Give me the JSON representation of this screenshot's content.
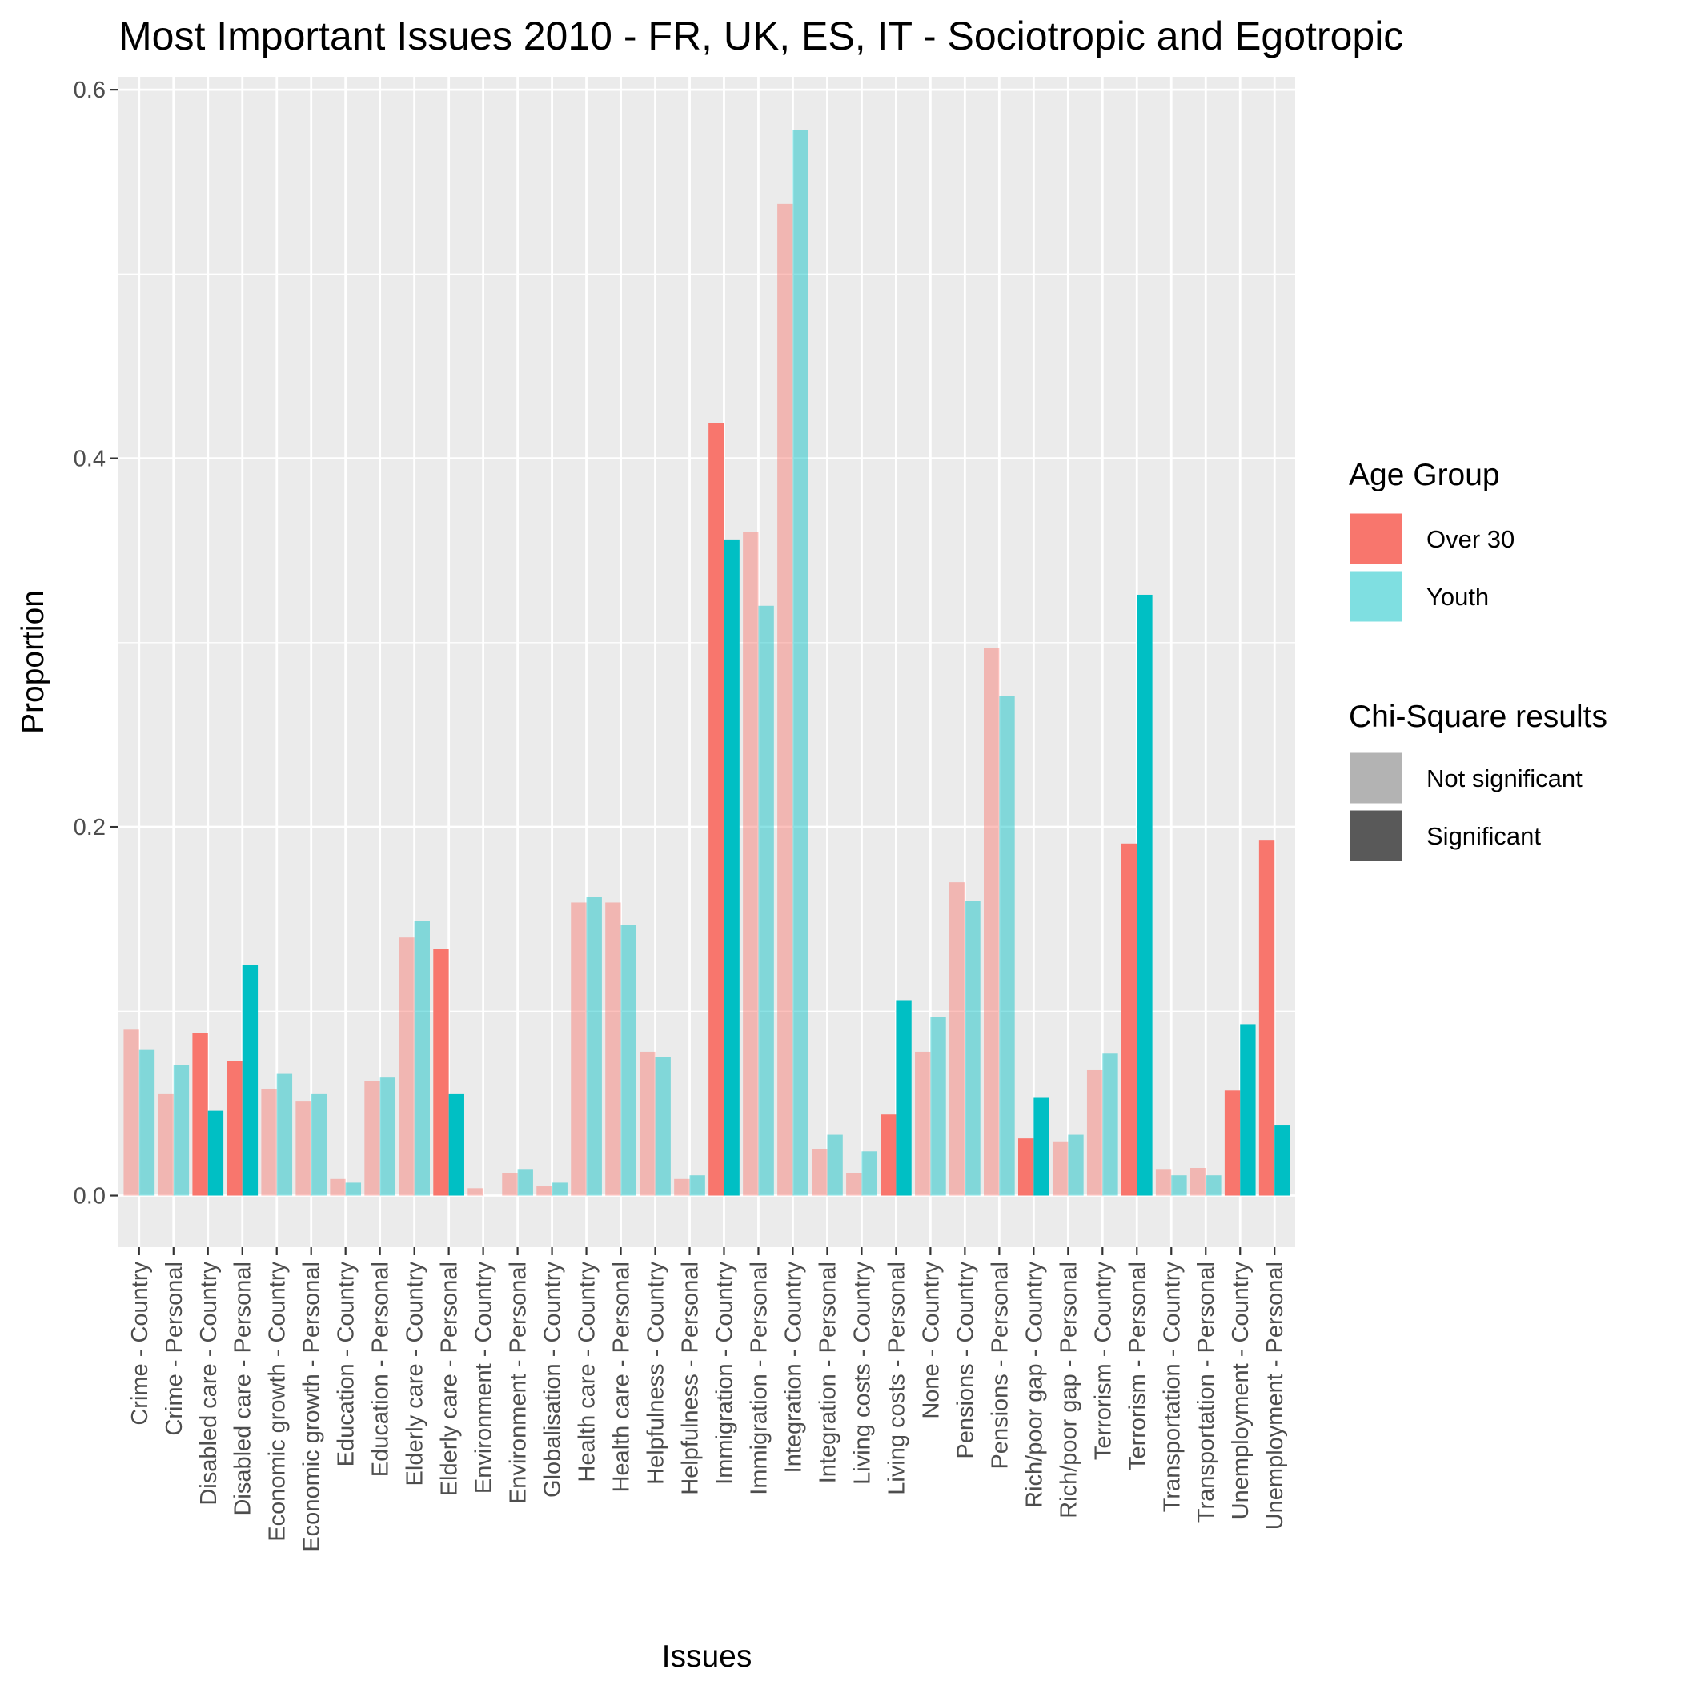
{
  "chart_data": {
    "type": "bar",
    "title": "Most Important Issues 2010 - FR, UK, ES, IT - Sociotropic and Egotropic",
    "xlabel": "Issues",
    "ylabel": "Proportion",
    "ylim": [
      -0.028,
      0.607
    ],
    "yticks": [
      0.0,
      0.2,
      0.4,
      0.6
    ],
    "ytick_labels": [
      "0.0",
      "0.2",
      "0.4",
      "0.6"
    ],
    "grid": true,
    "legend_position": "right",
    "categories": [
      "Crime - Country",
      "Crime - Personal",
      "Disabled care - Country",
      "Disabled care - Personal",
      "Economic growth - Country",
      "Economic growth - Personal",
      "Education - Country",
      "Education - Personal",
      "Elderly care - Country",
      "Elderly care - Personal",
      "Environment - Country",
      "Environment - Personal",
      "Globalisation - Country",
      "Health care - Country",
      "Health care - Personal",
      "Helpfulness - Country",
      "Helpfulness - Personal",
      "Immigration - Country",
      "Immigration - Personal",
      "Integration - Country",
      "Integration - Personal",
      "Living costs - Country",
      "Living costs - Personal",
      "None - Country",
      "Pensions - Country",
      "Pensions - Personal",
      "Rich/poor gap - Country",
      "Rich/poor gap - Personal",
      "Terrorism - Country",
      "Terrorism - Personal",
      "Transportation - Country",
      "Transportation - Personal",
      "Unemployment - Country",
      "Unemployment - Personal"
    ],
    "significant": [
      false,
      false,
      true,
      true,
      false,
      false,
      false,
      false,
      false,
      true,
      false,
      false,
      false,
      false,
      false,
      false,
      false,
      true,
      false,
      false,
      false,
      false,
      true,
      false,
      false,
      false,
      true,
      false,
      false,
      true,
      false,
      false,
      true,
      true
    ],
    "series": [
      {
        "name": "Over 30",
        "color": "#F8766D",
        "values": [
          0.09,
          0.055,
          0.088,
          0.073,
          0.058,
          0.051,
          0.009,
          0.062,
          0.14,
          0.134,
          0.004,
          0.012,
          0.005,
          0.159,
          0.159,
          0.078,
          0.009,
          0.419,
          0.36,
          0.538,
          0.025,
          0.012,
          0.044,
          0.078,
          0.17,
          0.297,
          0.031,
          0.029,
          0.068,
          0.191,
          0.014,
          0.015,
          0.057,
          0.193
        ]
      },
      {
        "name": "Youth",
        "color": "#00BFC4",
        "values": [
          0.079,
          0.071,
          0.046,
          0.125,
          0.066,
          0.055,
          0.007,
          0.064,
          0.149,
          0.055,
          0.0,
          0.014,
          0.007,
          0.162,
          0.147,
          0.075,
          0.011,
          0.356,
          0.32,
          0.578,
          0.033,
          0.024,
          0.106,
          0.097,
          0.16,
          0.271,
          0.053,
          0.033,
          0.077,
          0.326,
          0.011,
          0.011,
          0.093,
          0.038
        ]
      }
    ],
    "legend": {
      "age_title": "Age Group",
      "age_items": [
        "Over 30",
        "Youth"
      ],
      "chi_title": "Chi-Square results",
      "chi_items": [
        "Not significant",
        "Significant"
      ],
      "chi_colors": [
        "#B3B3B3",
        "#595959"
      ]
    }
  }
}
